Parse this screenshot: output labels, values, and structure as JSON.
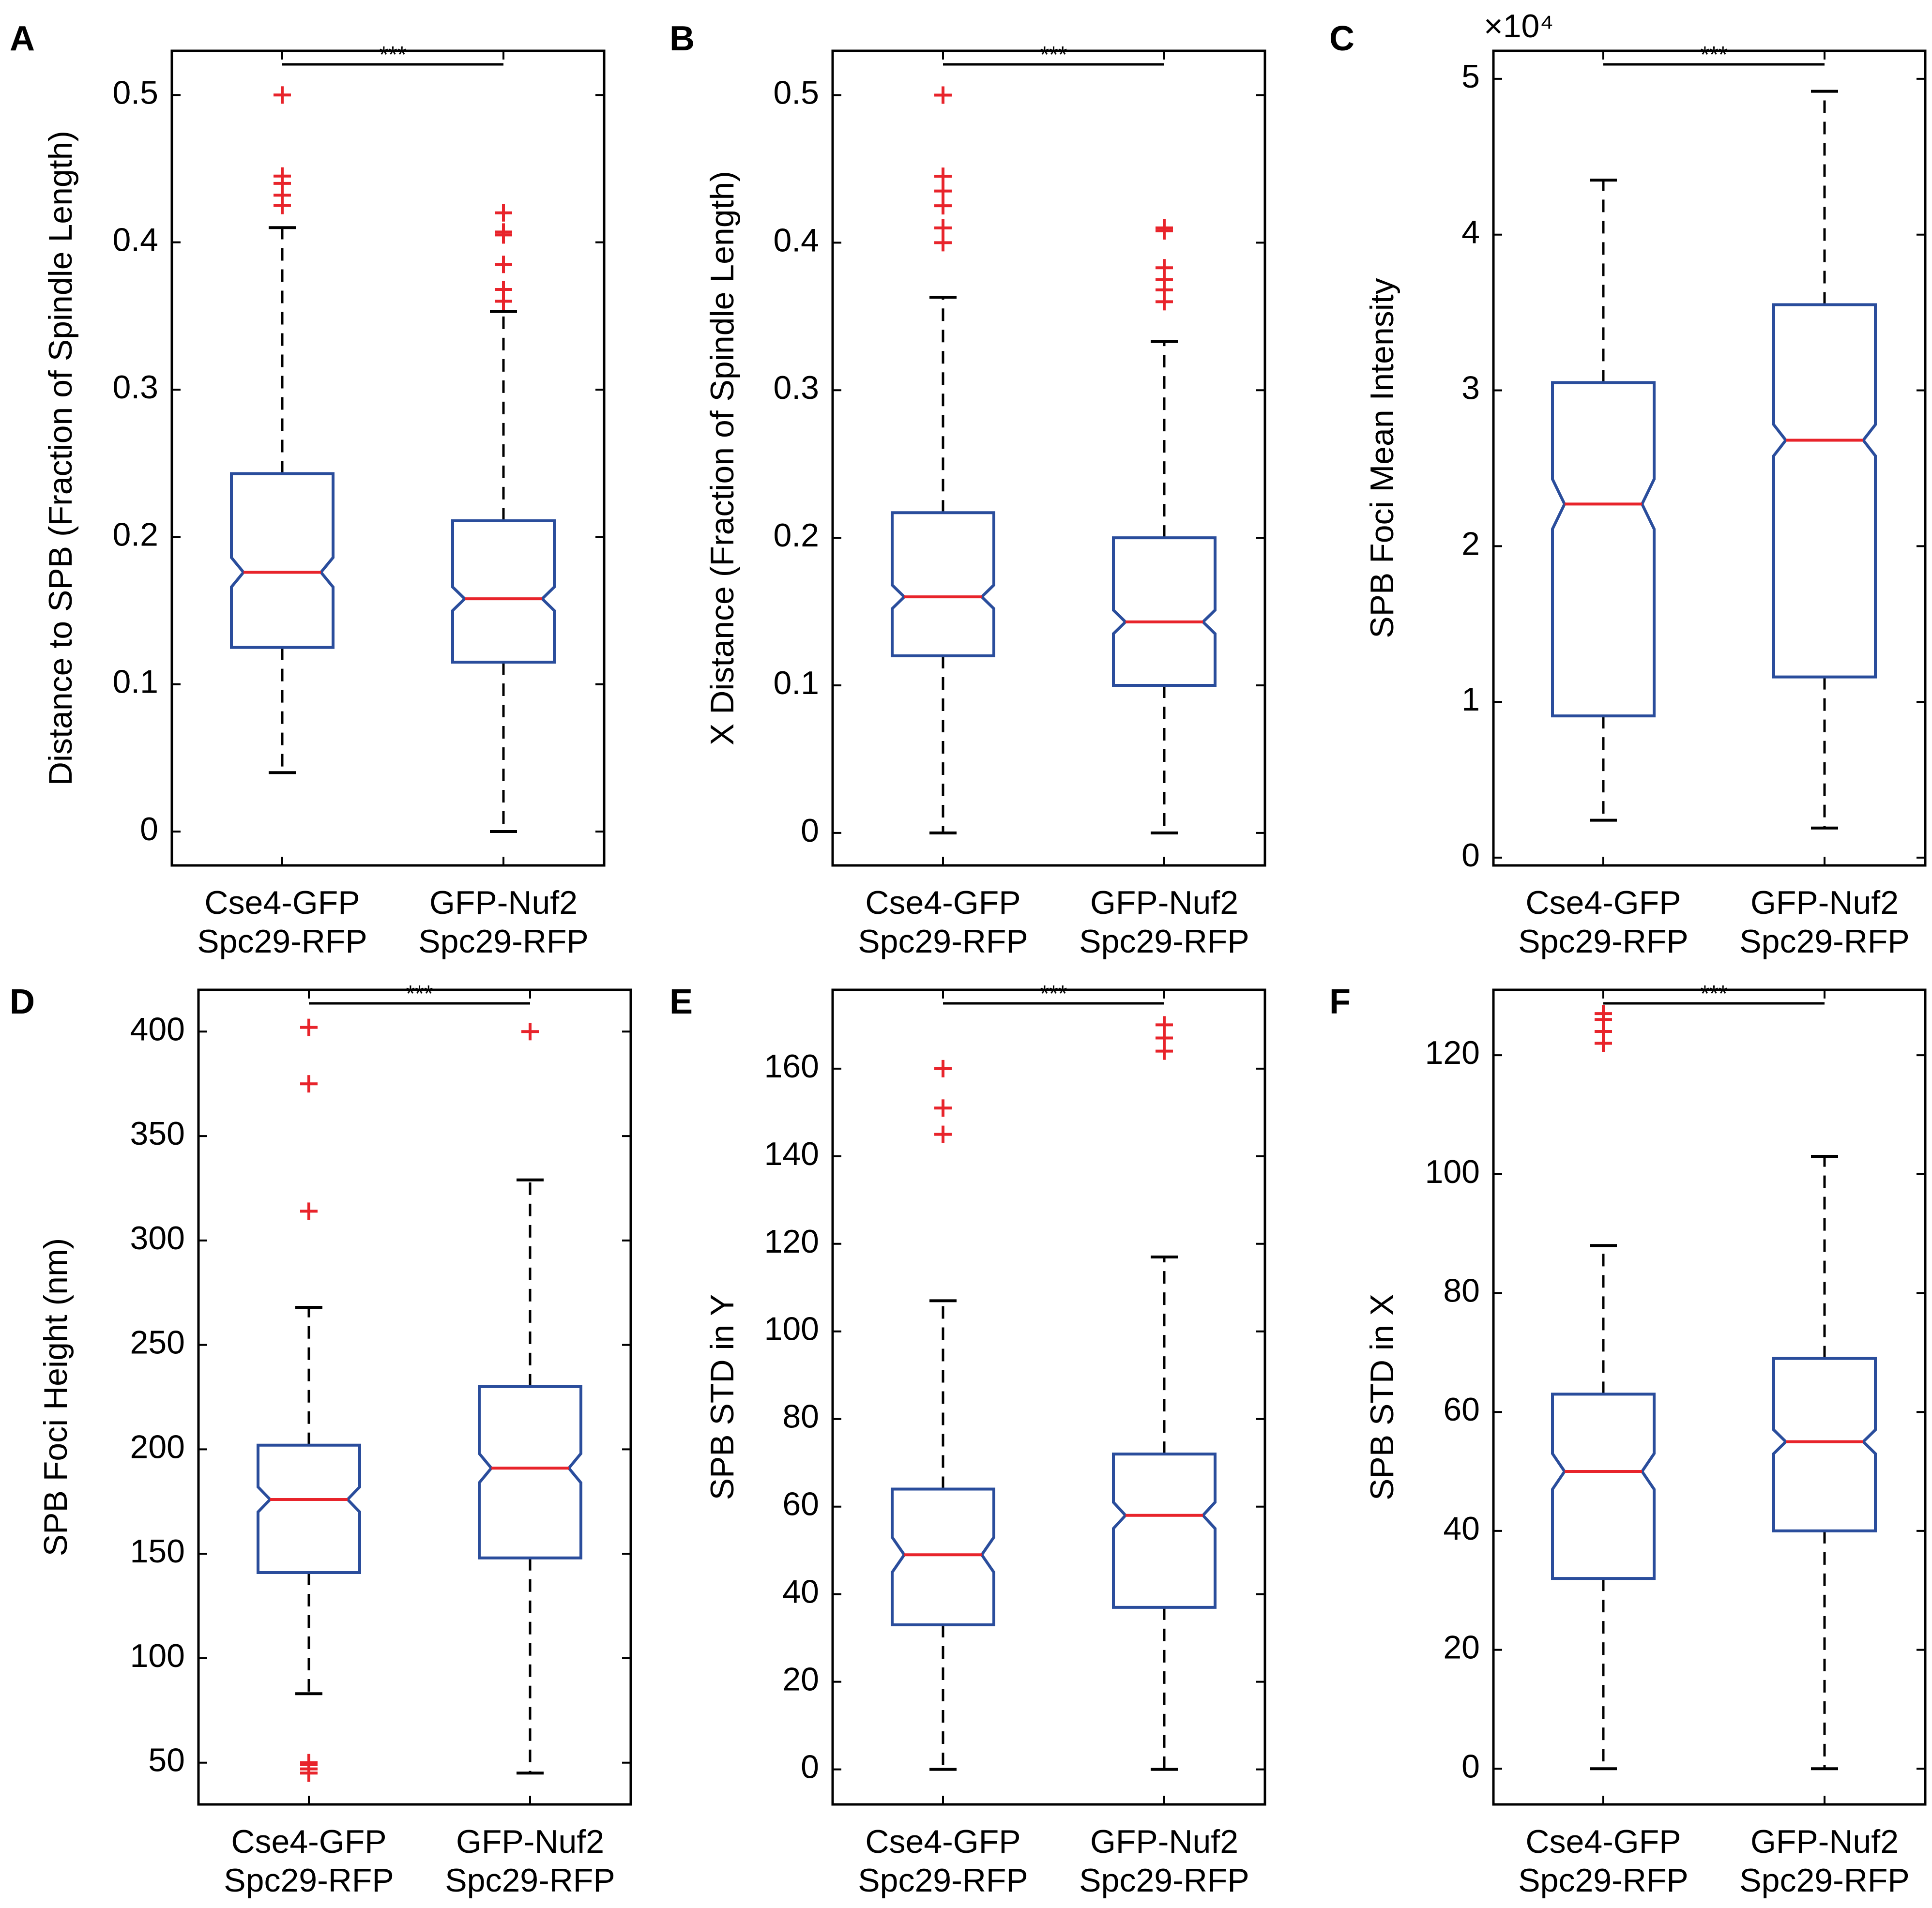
{
  "figure": {
    "significance_label": "***"
  },
  "colors": {
    "box": "#2a4d9c",
    "median": "#e8242b",
    "outlier": "#e8242b",
    "whisker": "#000000",
    "axis": "#000000"
  },
  "chart_data": [
    {
      "panel": "A",
      "type": "boxplot",
      "notched": true,
      "ylabel": "Distance to SPB (Fraction of Spindle Length)",
      "ylim": [
        -0.023,
        0.53
      ],
      "yticks": [
        0,
        0.1,
        0.2,
        0.3,
        0.4,
        0.5
      ],
      "ytick_labels": [
        "0",
        "0.1",
        "0.2",
        "0.3",
        "0.4",
        "0.5"
      ],
      "exponent_label": null,
      "groups": [
        {
          "label_line1": "Cse4-GFP",
          "label_line2": "Spc29-RFP",
          "q1": 0.125,
          "median": 0.176,
          "q3": 0.243,
          "notch_low": 0.166,
          "notch_high": 0.186,
          "whisker_low": 0.04,
          "whisker_high": 0.41,
          "outliers": [
            0.425,
            0.432,
            0.44,
            0.445,
            0.5
          ]
        },
        {
          "label_line1": "GFP-Nuf2",
          "label_line2": "Spc29-RFP",
          "q1": 0.115,
          "median": 0.158,
          "q3": 0.211,
          "notch_low": 0.15,
          "notch_high": 0.166,
          "whisker_low": 0.0,
          "whisker_high": 0.353,
          "outliers": [
            0.36,
            0.368,
            0.385,
            0.405,
            0.407,
            0.42
          ]
        }
      ],
      "significance": "***"
    },
    {
      "panel": "B",
      "type": "boxplot",
      "notched": true,
      "ylabel": "X Distance (Fraction of Spindle Length)",
      "ylim": [
        -0.022,
        0.53
      ],
      "yticks": [
        0,
        0.1,
        0.2,
        0.3,
        0.4,
        0.5
      ],
      "ytick_labels": [
        "0",
        "0.1",
        "0.2",
        "0.3",
        "0.4",
        "0.5"
      ],
      "exponent_label": null,
      "groups": [
        {
          "label_line1": "Cse4-GFP",
          "label_line2": "Spc29-RFP",
          "q1": 0.12,
          "median": 0.16,
          "q3": 0.217,
          "notch_low": 0.152,
          "notch_high": 0.168,
          "whisker_low": 0.0,
          "whisker_high": 0.363,
          "outliers": [
            0.4,
            0.41,
            0.425,
            0.435,
            0.445,
            0.5
          ]
        },
        {
          "label_line1": "GFP-Nuf2",
          "label_line2": "Spc29-RFP",
          "q1": 0.1,
          "median": 0.143,
          "q3": 0.2,
          "notch_low": 0.135,
          "notch_high": 0.151,
          "whisker_low": 0.0,
          "whisker_high": 0.333,
          "outliers": [
            0.36,
            0.368,
            0.375,
            0.383,
            0.408,
            0.41
          ]
        }
      ],
      "significance": "***"
    },
    {
      "panel": "C",
      "type": "boxplot",
      "notched": true,
      "ylabel": "SPB Foci Mean Intensity",
      "ylim": [
        -500,
        51800
      ],
      "yticks": [
        0,
        10000,
        20000,
        30000,
        40000,
        50000
      ],
      "ytick_labels": [
        "0",
        "1",
        "2",
        "3",
        "4",
        "5"
      ],
      "exponent_label": "×10⁴",
      "groups": [
        {
          "label_line1": "Cse4-GFP",
          "label_line2": "Spc29-RFP",
          "q1": 9100,
          "median": 22700,
          "q3": 30500,
          "notch_low": 21100,
          "notch_high": 24300,
          "whisker_low": 2400,
          "whisker_high": 43500,
          "outliers": []
        },
        {
          "label_line1": "GFP-Nuf2",
          "label_line2": "Spc29-RFP",
          "q1": 11600,
          "median": 26800,
          "q3": 35500,
          "notch_low": 25800,
          "notch_high": 27800,
          "whisker_low": 1900,
          "whisker_high": 49200,
          "outliers": []
        }
      ],
      "significance": "***"
    },
    {
      "panel": "D",
      "type": "boxplot",
      "notched": true,
      "ylabel": "SPB Foci Height (nm)",
      "ylim": [
        30,
        420
      ],
      "yticks": [
        50,
        100,
        150,
        200,
        250,
        300,
        350,
        400
      ],
      "ytick_labels": [
        "50",
        "100",
        "150",
        "200",
        "250",
        "300",
        "350",
        "400"
      ],
      "exponent_label": null,
      "groups": [
        {
          "label_line1": "Cse4-GFP",
          "label_line2": "Spc29-RFP",
          "q1": 141,
          "median": 176,
          "q3": 202,
          "notch_low": 170,
          "notch_high": 182,
          "whisker_low": 83,
          "whisker_high": 268,
          "outliers": [
            45,
            47,
            49,
            50,
            314,
            375,
            402
          ]
        },
        {
          "label_line1": "GFP-Nuf2",
          "label_line2": "Spc29-RFP",
          "q1": 148,
          "median": 191,
          "q3": 230,
          "notch_low": 184,
          "notch_high": 198,
          "whisker_low": 45,
          "whisker_high": 329,
          "outliers": [
            400
          ]
        }
      ],
      "significance": "***"
    },
    {
      "panel": "E",
      "type": "boxplot",
      "notched": true,
      "ylabel": "SPB STD in Y",
      "ylim": [
        -8,
        178
      ],
      "yticks": [
        0,
        20,
        40,
        60,
        80,
        100,
        120,
        140,
        160
      ],
      "ytick_labels": [
        "0",
        "20",
        "40",
        "60",
        "80",
        "100",
        "120",
        "140",
        "160"
      ],
      "exponent_label": null,
      "groups": [
        {
          "label_line1": "Cse4-GFP",
          "label_line2": "Spc29-RFP",
          "q1": 33,
          "median": 49,
          "q3": 64,
          "notch_low": 45,
          "notch_high": 53,
          "whisker_low": 0,
          "whisker_high": 107,
          "outliers": [
            145,
            151,
            160
          ]
        },
        {
          "label_line1": "GFP-Nuf2",
          "label_line2": "Spc29-RFP",
          "q1": 37,
          "median": 58,
          "q3": 72,
          "notch_low": 55,
          "notch_high": 61,
          "whisker_low": 0,
          "whisker_high": 117,
          "outliers": [
            164,
            167,
            170
          ]
        }
      ],
      "significance": "***"
    },
    {
      "panel": "F",
      "type": "boxplot",
      "notched": true,
      "ylabel": "SPB STD in X",
      "ylim": [
        -6,
        131
      ],
      "yticks": [
        0,
        20,
        40,
        60,
        80,
        100,
        120
      ],
      "ytick_labels": [
        "0",
        "20",
        "40",
        "60",
        "80",
        "100",
        "120"
      ],
      "exponent_label": null,
      "groups": [
        {
          "label_line1": "Cse4-GFP",
          "label_line2": "Spc29-RFP",
          "q1": 32,
          "median": 50,
          "q3": 63,
          "notch_low": 47,
          "notch_high": 53,
          "whisker_low": 0,
          "whisker_high": 88,
          "outliers": [
            122,
            124,
            126,
            127
          ]
        },
        {
          "label_line1": "GFP-Nuf2",
          "label_line2": "Spc29-RFP",
          "q1": 40,
          "median": 55,
          "q3": 69,
          "notch_low": 53,
          "notch_high": 57,
          "whisker_low": 0,
          "whisker_high": 103,
          "outliers": []
        }
      ],
      "significance": "***"
    }
  ]
}
